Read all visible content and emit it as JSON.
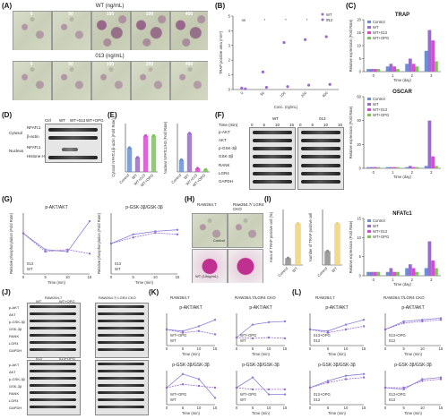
{
  "labels": {
    "A": "(A)",
    "B": "(B)",
    "C": "(C)",
    "D": "(D)",
    "E": "(E)",
    "F": "(F)",
    "G": "(G)",
    "H": "(H)",
    "I": "(I)",
    "J": "(J)",
    "K": "(K)",
    "L": "(L)"
  },
  "panelA": {
    "title_wt": "WT (ng/mL)",
    "title_013": "013 (ng/mL)",
    "concs": [
      "0",
      "50",
      "100",
      "200",
      "400"
    ]
  },
  "chart_data": [
    {
      "id": "B",
      "type": "scatter",
      "ylabel": "TRAP positive area (mm²)",
      "xlabel": "Conc. (ng/mL)",
      "categories": [
        "0",
        "50",
        "100",
        "200",
        "400"
      ],
      "series": [
        {
          "name": "WT",
          "values": [
            0.1,
            1.2,
            3.2,
            3.4,
            3.6
          ]
        },
        {
          "name": "013",
          "values": [
            0.05,
            0.15,
            0.2,
            0.3,
            0.35
          ]
        }
      ],
      "ylim": [
        0,
        5
      ],
      "yticks": [
        "0",
        "1",
        "2",
        "3",
        "4",
        "5"
      ],
      "sig": [
        "ns",
        "*",
        "*",
        "*",
        "*"
      ]
    },
    {
      "id": "C_TRAP",
      "type": "bar",
      "title": "TRAP",
      "xlabel": "Time (day)",
      "ylabel": "Relative expression (Fold Rate)",
      "categories": [
        "0",
        "1",
        "2",
        "3"
      ],
      "series": [
        {
          "name": "Control",
          "values": [
            1,
            2,
            3,
            8
          ]
        },
        {
          "name": "WT",
          "values": [
            1,
            3,
            5,
            16
          ]
        },
        {
          "name": "WT+013",
          "values": [
            1,
            2,
            3,
            12
          ]
        },
        {
          "name": "WT+OPG",
          "values": [
            1,
            1,
            2,
            4
          ]
        }
      ],
      "ylim": [
        0,
        20
      ],
      "yticks": [
        "0",
        "5",
        "10",
        "15",
        "20"
      ]
    },
    {
      "id": "C_OSCAR",
      "type": "bar",
      "title": "OSCAR",
      "xlabel": "Time (day)",
      "ylabel": "Relative expression (Fold Rate)",
      "categories": [
        "0",
        "1",
        "2",
        "3"
      ],
      "series": [
        {
          "name": "Control",
          "values": [
            1,
            1,
            1,
            2
          ]
        },
        {
          "name": "WT",
          "values": [
            1,
            1,
            2,
            40
          ]
        },
        {
          "name": "WT+013",
          "values": [
            1,
            1,
            1,
            10
          ]
        },
        {
          "name": "WT+OPG",
          "values": [
            1,
            1,
            1,
            2
          ]
        }
      ],
      "ylim": [
        0,
        60
      ],
      "yticks": [
        "0",
        "20",
        "40",
        "60"
      ]
    },
    {
      "id": "C_NFATc1",
      "type": "bar",
      "title": "NFATc1",
      "xlabel": "Time (day)",
      "ylabel": "Relative expression (Fold Rate)",
      "categories": [
        "0",
        "1",
        "2",
        "3"
      ],
      "series": [
        {
          "name": "Control",
          "values": [
            1,
            1,
            2,
            2
          ]
        },
        {
          "name": "WT",
          "values": [
            1,
            2,
            3,
            9
          ]
        },
        {
          "name": "WT+013",
          "values": [
            1,
            1,
            2,
            4
          ]
        },
        {
          "name": "WT+OPG",
          "values": [
            1,
            1,
            1,
            2
          ]
        }
      ],
      "ylim": [
        0,
        15
      ],
      "yticks": [
        "0",
        "5",
        "10",
        "15"
      ]
    },
    {
      "id": "E1",
      "type": "scatter",
      "ylabel": "Cytosol NFATc1/β-actin (Fold Rate)",
      "categories": [
        "Control",
        "WT",
        "WT+013",
        "WT+OPG"
      ],
      "series": [
        {
          "name": "",
          "values": [
            1.0,
            0.6,
            1.5,
            1.5
          ]
        }
      ],
      "ylim": [
        0,
        2.0
      ]
    },
    {
      "id": "E2",
      "type": "scatter",
      "ylabel": "Nuclear NFATc1/H3 (Fold Rate)",
      "categories": [
        "Control",
        "WT",
        "WT+013",
        "WT+OPG"
      ],
      "series": [
        {
          "name": "",
          "values": [
            1.0,
            3.2,
            0.3,
            0.2
          ]
        }
      ],
      "ylim": [
        0,
        4
      ]
    },
    {
      "id": "G1",
      "type": "line",
      "title": "p-AKT/AKT",
      "xlabel": "Time (min)",
      "ylabel": "Relative phosphorylation (Fold Rate)",
      "x": [
        0,
        5,
        10,
        15
      ],
      "series": [
        {
          "name": "WT",
          "values": [
            1.0,
            0.6,
            0.55,
            1.3
          ]
        },
        {
          "name": "013",
          "values": [
            1.0,
            0.55,
            0.6,
            0.5
          ]
        }
      ],
      "ylim": [
        0,
        1.5
      ]
    },
    {
      "id": "G2",
      "type": "line",
      "title": "p-GSK-3β/GSK-3β",
      "xlabel": "Time (min)",
      "ylabel": "Relative phosphorylation (Fold Rate)",
      "x": [
        0,
        5,
        10,
        15
      ],
      "series": [
        {
          "name": "WT",
          "values": [
            1.0,
            1.3,
            1.4,
            1.45
          ]
        },
        {
          "name": "013",
          "values": [
            1.0,
            1.2,
            1.35,
            1.3
          ]
        }
      ],
      "ylim": [
        0,
        2.0
      ]
    },
    {
      "id": "I1",
      "type": "scatter",
      "ylabel": "Area of TRAP positive cell (%)",
      "categories": [
        "Control",
        "WT"
      ],
      "series": [
        {
          "name": "",
          "values": [
            5,
            30
          ]
        }
      ],
      "ylim": [
        0,
        40
      ]
    },
    {
      "id": "I2",
      "type": "scatter",
      "ylabel": "Number of TRAP positive cell",
      "categories": [
        "Control",
        "WT"
      ],
      "series": [
        {
          "name": "",
          "values": [
            20,
            60
          ]
        }
      ],
      "ylim": [
        0,
        80
      ]
    },
    {
      "id": "K1",
      "type": "line",
      "title": "p-AKT/AKT",
      "xlabel": "Time (min)",
      "x": [
        0,
        5,
        10,
        15
      ],
      "series": [
        {
          "name": "WT",
          "values": [
            1.0,
            0.9,
            1.2,
            1.6
          ]
        },
        {
          "name": "WT+OPG",
          "values": [
            1.0,
            0.8,
            0.9,
            0.7
          ]
        }
      ],
      "ylim": [
        0,
        2
      ]
    },
    {
      "id": "K2",
      "type": "line",
      "title": "p-AKT/AKT",
      "xlabel": "Time (min)",
      "x": [
        0,
        5,
        10,
        15
      ],
      "series": [
        {
          "name": "WT",
          "values": [
            1.0,
            2.6,
            2.9,
            3.0
          ]
        },
        {
          "name": "WT+OPG",
          "values": [
            1.0,
            0.9,
            1.0,
            0.9
          ]
        }
      ],
      "ylim": [
        0,
        4
      ]
    },
    {
      "id": "K3",
      "type": "line",
      "title": "p-GSK-3β/GSK-3β",
      "xlabel": "Time (min)",
      "x": [
        0,
        5,
        10,
        15
      ],
      "series": [
        {
          "name": "WT",
          "values": [
            1.0,
            1.8,
            1.5,
            0.4
          ]
        },
        {
          "name": "WT+OPG",
          "values": [
            1.0,
            1.2,
            1.1,
            1.0
          ]
        }
      ],
      "ylim": [
        0,
        2
      ]
    },
    {
      "id": "K4",
      "type": "line",
      "title": "p-GSK-3β/GSK-3β",
      "xlabel": "Time (min)",
      "x": [
        0,
        5,
        10,
        15
      ],
      "series": [
        {
          "name": "WT",
          "values": [
            1.0,
            1.6,
            0.6,
            0.6
          ]
        },
        {
          "name": "WT+OPG",
          "values": [
            1.0,
            0.9,
            0.9,
            0.9
          ]
        }
      ],
      "ylim": [
        0,
        2
      ]
    },
    {
      "id": "L1",
      "type": "line",
      "title": "p-AKT/AKT",
      "xlabel": "Time (min)",
      "x": [
        0,
        5,
        10,
        15
      ],
      "series": [
        {
          "name": "013",
          "values": [
            1.0,
            0.9,
            1.3,
            1.6
          ]
        },
        {
          "name": "013+OPG",
          "values": [
            1.0,
            0.8,
            1.0,
            1.2
          ]
        }
      ],
      "ylim": [
        0,
        2
      ]
    },
    {
      "id": "L2",
      "type": "line",
      "title": "p-AKT/AKT",
      "xlabel": "Time (min)",
      "x": [
        0,
        5,
        10,
        15
      ],
      "series": [
        {
          "name": "013",
          "values": [
            1.0,
            1.5,
            1.6,
            1.7
          ]
        },
        {
          "name": "013+OPG",
          "values": [
            1.0,
            1.4,
            1.5,
            1.6
          ]
        }
      ],
      "ylim": [
        0,
        2
      ]
    },
    {
      "id": "L3",
      "type": "line",
      "title": "p-GSK-3β/GSK-3β",
      "xlabel": "Time (min)",
      "x": [
        0,
        5,
        10,
        15
      ],
      "series": [
        {
          "name": "013",
          "values": [
            1.0,
            1.4,
            1.7,
            1.8
          ]
        },
        {
          "name": "013+OPG",
          "values": [
            1.0,
            1.3,
            1.5,
            1.6
          ]
        }
      ],
      "ylim": [
        0,
        2
      ]
    },
    {
      "id": "L4",
      "type": "line",
      "title": "p-GSK-3β/GSK-3β",
      "xlabel": "Time (min)",
      "x": [
        0,
        5,
        10,
        15
      ],
      "series": [
        {
          "name": "013",
          "values": [
            1.0,
            0.9,
            1.5,
            1.6
          ]
        },
        {
          "name": "013+OPG",
          "values": [
            1.0,
            1.0,
            1.4,
            1.5
          ]
        }
      ],
      "ylim": [
        0,
        2
      ]
    }
  ],
  "panelD": {
    "cols": [
      "Ctrl",
      "WT",
      "WT+013",
      "WT+OPG"
    ],
    "cyto_label": "Cytosol",
    "nuc_label": "Nucleus",
    "rows": [
      "NFATc1",
      "β-actin",
      "NFATc1",
      "Histone H3"
    ]
  },
  "panelF": {
    "group_wt": "WT",
    "group_013": "013",
    "time_label": "Time (min)",
    "times": [
      "0",
      "5",
      "10",
      "15"
    ],
    "rows": [
      "p-AKT",
      "AKT",
      "p-GSK-3β",
      "GSK-3β",
      "RANK",
      "LGR4",
      "GAPDH"
    ]
  },
  "panelH": {
    "col1": "RAW264.7",
    "col2": "Raw264.7/ LGR4 CKO",
    "row1": "Control",
    "row2": "WT (10ng/mL)"
  },
  "panelI": {
    "legend_ctrl": "Control",
    "legend_wt": "WT (10ng/mL)"
  },
  "panelJ": {
    "left": "RAW264.7",
    "right": "RAW264.7/ LGR4 CKO",
    "groups_top": [
      "WT",
      "WT+OPG"
    ],
    "groups_bot": [
      "013",
      "013+OPG"
    ],
    "rows": [
      "p-AKT",
      "AKT",
      "p-GSK-3β",
      "GSK-3β",
      "RANK",
      "LGR4",
      "GAPDH"
    ]
  },
  "panelK": {
    "left": "RAW264.7",
    "right": "RAW264.7/LGR4 CKO"
  },
  "panelL": {
    "left": "RAW264.7",
    "right": "RAW264.7/LGR4 CKO"
  },
  "colors": {
    "control": "#6a8fd6",
    "wt": "#9b6ad0",
    "wt013": "#d84bd0",
    "wtopg": "#7cc35a",
    "line_wt": "#8a7fd8",
    "line_013": "#9a6ad0",
    "grey_dot": "#8d8d8d"
  }
}
